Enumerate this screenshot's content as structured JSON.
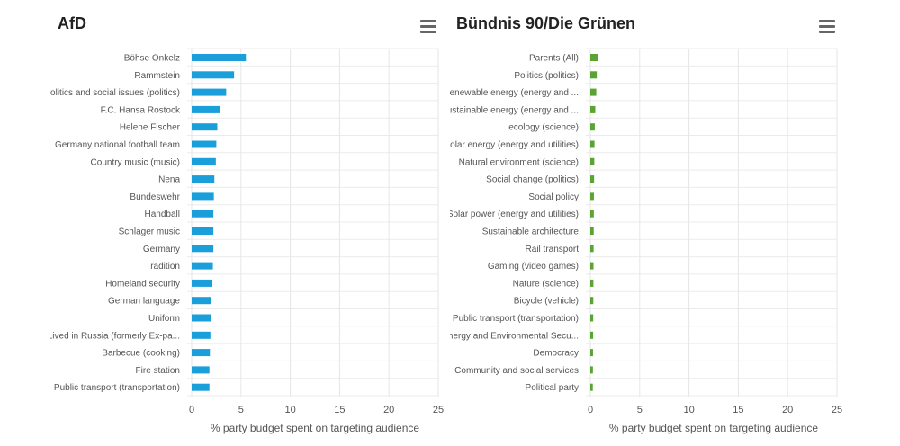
{
  "charts": [
    {
      "title": "AfD",
      "color": "#1a9fdb",
      "menu_icon": "hamburger-menu-icon"
    },
    {
      "title": "Bündnis 90/Die Grünen",
      "color": "#5aa434",
      "menu_icon": "hamburger-menu-icon"
    }
  ],
  "chart_data": [
    {
      "type": "bar",
      "orientation": "horizontal",
      "title": "AfD",
      "xlabel": "% party budget spent on targeting audience",
      "ylabel": "",
      "xlim": [
        0,
        25
      ],
      "xticks": [
        "0",
        "5",
        "10",
        "15",
        "20",
        "25"
      ],
      "grid": true,
      "categories": [
        "Böhse Onkelz",
        "Rammstein",
        "politics and social issues (politics)",
        "F.C. Hansa Rostock",
        "Helene Fischer",
        "Germany national football team",
        "Country music (music)",
        "Nena",
        "Bundeswehr",
        "Handball",
        "Schlager music",
        "Germany",
        "Tradition",
        "Homeland security",
        "German language",
        "Uniform",
        "Lived in Russia (formerly Ex-pa...",
        "Barbecue (cooking)",
        "Fire station",
        "Public transport (transportation)"
      ],
      "values": [
        5.5,
        4.3,
        3.5,
        2.9,
        2.6,
        2.5,
        2.45,
        2.3,
        2.25,
        2.2,
        2.2,
        2.2,
        2.15,
        2.1,
        2.0,
        1.95,
        1.9,
        1.85,
        1.8,
        1.8
      ]
    },
    {
      "type": "bar",
      "orientation": "horizontal",
      "title": "Bündnis 90/Die Grünen",
      "xlabel": "% party budget spent on targeting audience",
      "ylabel": "",
      "xlim": [
        0,
        25
      ],
      "xticks": [
        "0",
        "5",
        "10",
        "15",
        "20",
        "25"
      ],
      "grid": true,
      "categories": [
        "Parents (All)",
        "Politics (politics)",
        "Renewable energy (energy and ...",
        "Sustainable energy (energy and ...",
        "ecology (science)",
        "Solar energy (energy and utilities)",
        "Natural environment (science)",
        "Social change (politics)",
        "Social policy",
        "Solar power (energy and utilities)",
        "Sustainable architecture",
        "Rail transport",
        "Gaming (video games)",
        "Nature (science)",
        "Bicycle (vehicle)",
        "Public transport (transportation)",
        "Energy and Environmental Secu...",
        "Democracy",
        "Community and social services",
        "Political party"
      ],
      "values": [
        0.75,
        0.65,
        0.6,
        0.5,
        0.45,
        0.42,
        0.4,
        0.38,
        0.36,
        0.35,
        0.34,
        0.33,
        0.32,
        0.31,
        0.3,
        0.29,
        0.28,
        0.27,
        0.26,
        0.25
      ]
    }
  ]
}
